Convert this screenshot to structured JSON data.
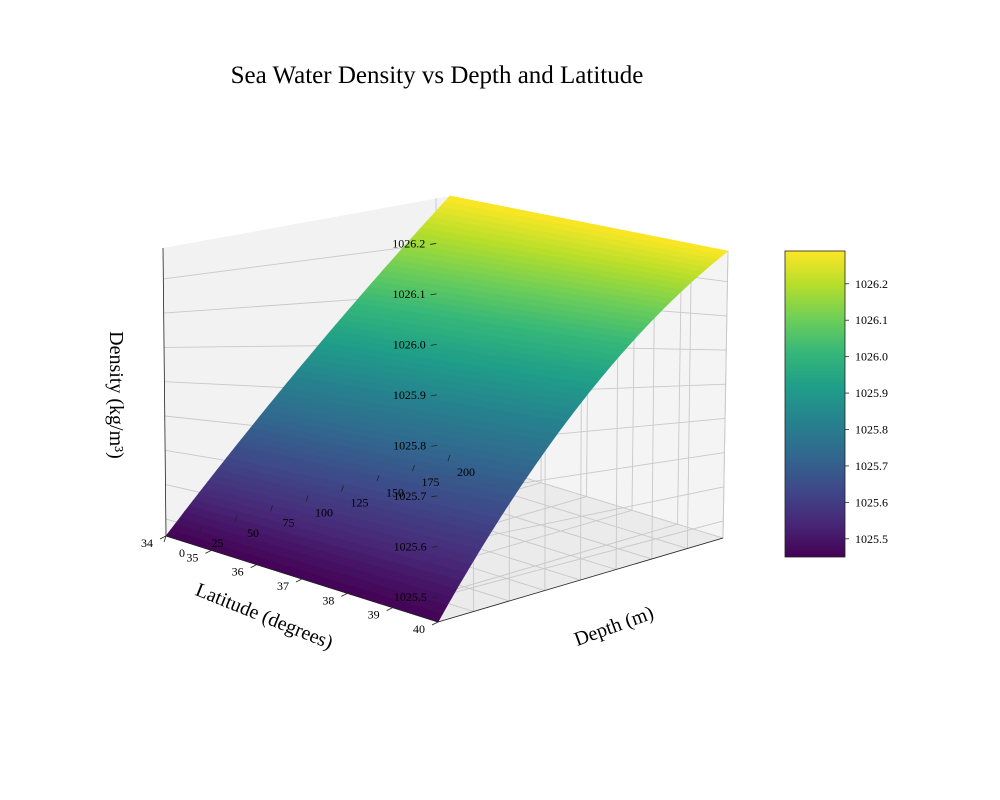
{
  "chart_data": {
    "type": "surface3d",
    "title": "Sea Water Density vs Depth and Latitude",
    "xlabel": "Depth (m)",
    "ylabel": "Latitude (degrees)",
    "zlabel": "Density (kg/m³)",
    "x_ticks": [
      "0",
      "25",
      "50",
      "75",
      "100",
      "125",
      "150",
      "175",
      "200"
    ],
    "y_ticks": [
      "40",
      "39",
      "38",
      "37",
      "36",
      "35",
      "34"
    ],
    "z_ticks": [
      "1025.5",
      "1025.6",
      "1025.7",
      "1025.8",
      "1025.9",
      "1026.0",
      "1026.1",
      "1026.2"
    ],
    "colorbar_ticks": [
      "1025.5",
      "1025.6",
      "1025.7",
      "1025.8",
      "1025.9",
      "1026.0",
      "1026.1",
      "1026.2"
    ],
    "xlim": [
      0,
      200
    ],
    "ylim": [
      34,
      40
    ],
    "zlim": [
      1025.45,
      1026.29
    ],
    "surface": {
      "depth_range": [
        0,
        200
      ],
      "latitude_range": [
        34,
        40
      ],
      "density_at_depth_0": 1025.45,
      "density_at_depth_200": 1026.29
    },
    "colormap": "viridis",
    "colormap_stops": [
      "#440154",
      "#482878",
      "#3e4989",
      "#31688e",
      "#26828e",
      "#1f9e89",
      "#35b779",
      "#6ece58",
      "#b5de2b",
      "#fde725"
    ],
    "grid": true
  }
}
